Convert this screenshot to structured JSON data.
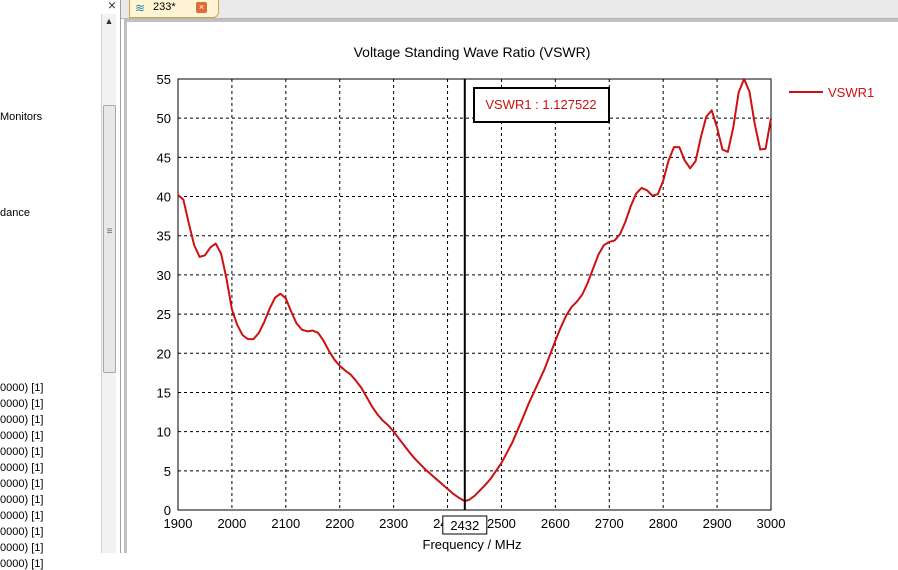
{
  "left_panel": {
    "close_glyph": "×",
    "items": [
      "Monitors",
      "dance"
    ],
    "result_items": [
      "0000) [1]",
      "0000) [1]",
      "0000) [1]",
      "0000) [1]",
      "0000) [1]",
      "0000) [1]",
      "0000) [1]",
      "0000) [1]",
      "0000) [1]",
      "0000) [1]",
      "0000) [1]",
      "0000) [1]"
    ]
  },
  "tab": {
    "label": "233*",
    "icon": "wave-icon",
    "close_glyph": "×"
  },
  "chart_data": {
    "type": "line",
    "title": "Voltage Standing Wave Ratio (VSWR)",
    "xlabel": "Frequency / MHz",
    "ylabel": "",
    "xlim": [
      1900,
      3000
    ],
    "ylim": [
      0,
      55
    ],
    "x_ticks": [
      1900,
      2000,
      2100,
      2200,
      2300,
      2400,
      2500,
      2600,
      2700,
      2800,
      2900,
      3000
    ],
    "y_ticks": [
      0,
      5,
      10,
      15,
      20,
      25,
      30,
      35,
      40,
      45,
      50,
      55
    ],
    "grid": true,
    "legend": "right",
    "marker": {
      "x": 2432,
      "label": "VSWR1 : 1.127522",
      "x_label": "2432"
    },
    "series": [
      {
        "name": "VSWR1",
        "color": "#cc1111",
        "points": [
          [
            1900,
            40.2
          ],
          [
            1910,
            39.6
          ],
          [
            1920,
            36.6
          ],
          [
            1930,
            33.8
          ],
          [
            1940,
            32.3
          ],
          [
            1950,
            32.5
          ],
          [
            1960,
            33.5
          ],
          [
            1970,
            34.0
          ],
          [
            1980,
            32.7
          ],
          [
            1990,
            29.5
          ],
          [
            2000,
            25.6
          ],
          [
            2010,
            23.6
          ],
          [
            2020,
            22.3
          ],
          [
            2030,
            21.8
          ],
          [
            2040,
            21.8
          ],
          [
            2050,
            22.6
          ],
          [
            2060,
            24.0
          ],
          [
            2070,
            25.7
          ],
          [
            2080,
            27.1
          ],
          [
            2090,
            27.6
          ],
          [
            2100,
            27.0
          ],
          [
            2110,
            25.3
          ],
          [
            2120,
            23.8
          ],
          [
            2130,
            23.0
          ],
          [
            2140,
            22.8
          ],
          [
            2150,
            22.9
          ],
          [
            2160,
            22.6
          ],
          [
            2170,
            21.6
          ],
          [
            2180,
            20.3
          ],
          [
            2190,
            19.2
          ],
          [
            2200,
            18.4
          ],
          [
            2210,
            17.8
          ],
          [
            2220,
            17.3
          ],
          [
            2230,
            16.5
          ],
          [
            2240,
            15.6
          ],
          [
            2250,
            14.4
          ],
          [
            2260,
            13.2
          ],
          [
            2270,
            12.2
          ],
          [
            2280,
            11.4
          ],
          [
            2290,
            10.8
          ],
          [
            2300,
            10.0
          ],
          [
            2310,
            9.1
          ],
          [
            2320,
            8.2
          ],
          [
            2330,
            7.3
          ],
          [
            2340,
            6.5
          ],
          [
            2350,
            5.8
          ],
          [
            2360,
            5.1
          ],
          [
            2370,
            4.5
          ],
          [
            2380,
            3.9
          ],
          [
            2390,
            3.3
          ],
          [
            2400,
            2.7
          ],
          [
            2410,
            2.1
          ],
          [
            2420,
            1.6
          ],
          [
            2432,
            1.13
          ],
          [
            2440,
            1.3
          ],
          [
            2450,
            1.8
          ],
          [
            2460,
            2.5
          ],
          [
            2470,
            3.2
          ],
          [
            2480,
            4.0
          ],
          [
            2490,
            5.0
          ],
          [
            2500,
            6.0
          ],
          [
            2510,
            7.3
          ],
          [
            2520,
            8.6
          ],
          [
            2530,
            10.2
          ],
          [
            2540,
            11.8
          ],
          [
            2550,
            13.5
          ],
          [
            2560,
            15.0
          ],
          [
            2570,
            16.5
          ],
          [
            2580,
            18.0
          ],
          [
            2590,
            19.8
          ],
          [
            2600,
            21.6
          ],
          [
            2610,
            23.3
          ],
          [
            2620,
            24.8
          ],
          [
            2630,
            25.9
          ],
          [
            2640,
            26.6
          ],
          [
            2650,
            27.5
          ],
          [
            2660,
            29.0
          ],
          [
            2670,
            30.8
          ],
          [
            2680,
            32.6
          ],
          [
            2690,
            33.8
          ],
          [
            2700,
            34.2
          ],
          [
            2710,
            34.4
          ],
          [
            2720,
            35.2
          ],
          [
            2730,
            36.8
          ],
          [
            2740,
            38.8
          ],
          [
            2750,
            40.4
          ],
          [
            2760,
            41.1
          ],
          [
            2770,
            40.8
          ],
          [
            2780,
            40.1
          ],
          [
            2790,
            40.3
          ],
          [
            2800,
            42.0
          ],
          [
            2810,
            44.6
          ],
          [
            2820,
            46.3
          ],
          [
            2830,
            46.3
          ],
          [
            2840,
            44.6
          ],
          [
            2850,
            43.6
          ],
          [
            2860,
            44.5
          ],
          [
            2870,
            47.6
          ],
          [
            2880,
            50.2
          ],
          [
            2890,
            51.0
          ],
          [
            2900,
            48.8
          ],
          [
            2910,
            46.0
          ],
          [
            2920,
            45.7
          ],
          [
            2930,
            48.8
          ],
          [
            2940,
            53.3
          ],
          [
            2950,
            55.0
          ],
          [
            2960,
            53.4
          ],
          [
            2970,
            49.2
          ],
          [
            2980,
            46.0
          ],
          [
            2990,
            46.1
          ],
          [
            3000,
            50.0
          ]
        ]
      }
    ]
  }
}
